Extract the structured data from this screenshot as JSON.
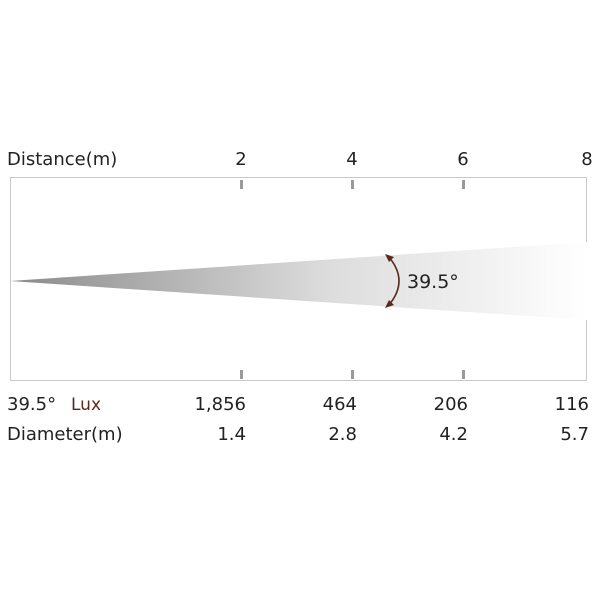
{
  "header": {
    "distance_label": "Distance(m)",
    "distances": [
      "2",
      "4",
      "6",
      "8"
    ]
  },
  "beam": {
    "angle_label": "39.5°"
  },
  "rows": {
    "lux_angle": "39.5°",
    "lux_unit": "Lux",
    "lux_values": [
      "1,856",
      "464",
      "206",
      "116"
    ],
    "diameter_label": "Diameter(m)",
    "diameter_values": [
      "1.4",
      "2.8",
      "4.2",
      "5.7"
    ]
  },
  "colors": {
    "beam_start": "#8a8a8a",
    "beam_end": "#ffffff",
    "tick": "#9a9a9a",
    "arrow": "#5a2a1e"
  }
}
